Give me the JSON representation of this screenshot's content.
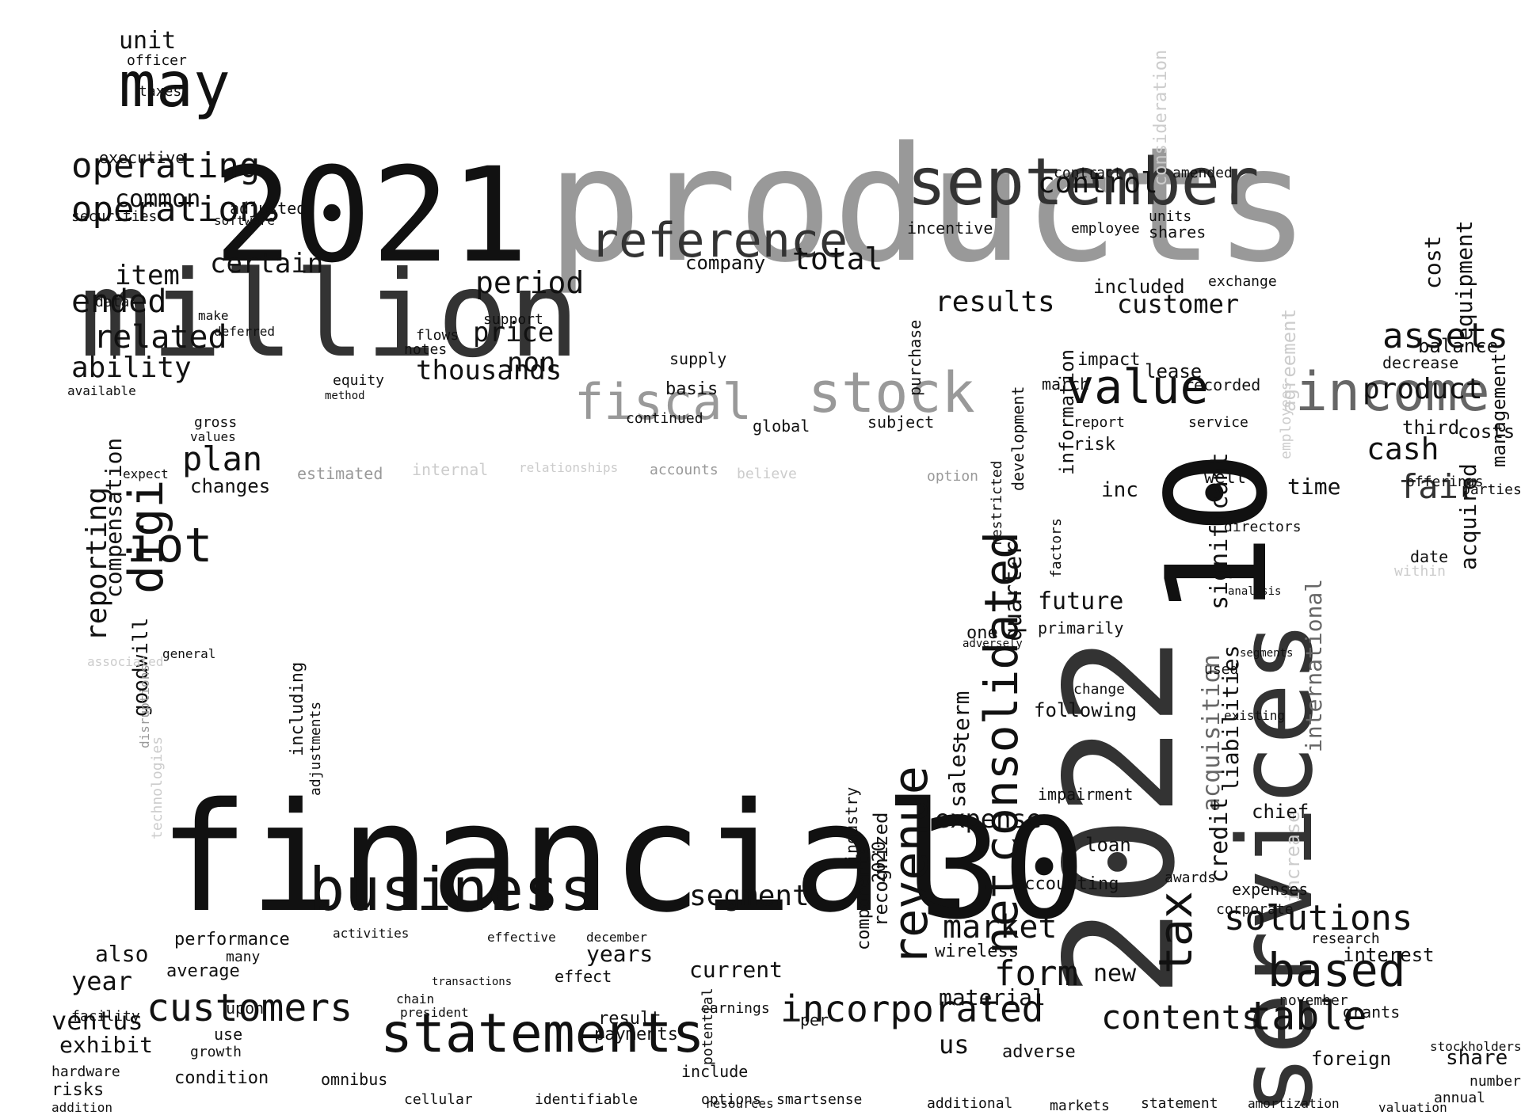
{
  "palette": {
    "background": "#ffffff",
    "black": "#111111",
    "dark": "#333333",
    "mid": "#666666",
    "gray": "#999999",
    "light": "#cccccc"
  },
  "words": [
    {
      "text": "products",
      "color": "gray"
    },
    {
      "text": "financial",
      "color": "black"
    },
    {
      "text": "million",
      "color": "dark"
    },
    {
      "text": "2021",
      "color": "black"
    },
    {
      "text": "2022",
      "color": "dark"
    },
    {
      "text": "30",
      "color": "black"
    },
    {
      "text": "10",
      "color": "black"
    },
    {
      "text": "services",
      "color": "dark"
    },
    {
      "text": "business",
      "color": "black"
    },
    {
      "text": "statements",
      "color": "black"
    },
    {
      "text": "september",
      "color": "dark"
    },
    {
      "text": "may",
      "color": "black"
    },
    {
      "text": "income",
      "color": "mid"
    },
    {
      "text": "reference",
      "color": "dark"
    },
    {
      "text": "stock",
      "color": "gray"
    },
    {
      "text": "fiscal",
      "color": "gray"
    },
    {
      "text": "value",
      "color": "black"
    },
    {
      "text": "iot",
      "color": "black"
    },
    {
      "text": "digi",
      "color": "black"
    },
    {
      "text": "revenue",
      "color": "black"
    },
    {
      "text": "consolidated",
      "color": "black"
    },
    {
      "text": "net",
      "color": "black"
    },
    {
      "text": "tax",
      "color": "black"
    },
    {
      "text": "customers",
      "color": "black"
    },
    {
      "text": "incorporated",
      "color": "black"
    },
    {
      "text": "based",
      "color": "black"
    },
    {
      "text": "operating",
      "color": "black"
    },
    {
      "text": "operations",
      "color": "black"
    },
    {
      "text": "assets",
      "color": "black"
    },
    {
      "text": "table",
      "color": "black"
    },
    {
      "text": "solutions",
      "color": "black"
    },
    {
      "text": "contents",
      "color": "black"
    },
    {
      "text": "form",
      "color": "black"
    },
    {
      "text": "market",
      "color": "black"
    },
    {
      "text": "cash",
      "color": "black"
    },
    {
      "text": "fair",
      "color": "dark"
    },
    {
      "text": "product",
      "color": "black"
    },
    {
      "text": "segment",
      "color": "black"
    },
    {
      "text": "control",
      "color": "black"
    },
    {
      "text": "results",
      "color": "black"
    },
    {
      "text": "customer",
      "color": "black"
    },
    {
      "text": "total",
      "color": "black"
    },
    {
      "text": "period",
      "color": "black"
    },
    {
      "text": "price",
      "color": "black"
    },
    {
      "text": "non",
      "color": "black"
    },
    {
      "text": "thousands",
      "color": "black"
    },
    {
      "text": "ended",
      "color": "black"
    },
    {
      "text": "related",
      "color": "black"
    },
    {
      "text": "ability",
      "color": "black"
    },
    {
      "text": "item",
      "color": "black"
    },
    {
      "text": "certain",
      "color": "black"
    },
    {
      "text": "common",
      "color": "black"
    },
    {
      "text": "plan",
      "color": "black"
    },
    {
      "text": "changes",
      "color": "black"
    },
    {
      "text": "reporting",
      "color": "black"
    },
    {
      "text": "compensation",
      "color": "black"
    },
    {
      "text": "goodwill",
      "color": "black"
    },
    {
      "text": "unit",
      "color": "black"
    },
    {
      "text": "officer",
      "color": "black"
    },
    {
      "text": "taxes",
      "color": "black"
    },
    {
      "text": "executive",
      "color": "black"
    },
    {
      "text": "securities",
      "color": "black"
    },
    {
      "text": "adjusted",
      "color": "black"
    },
    {
      "text": "software",
      "color": "black"
    },
    {
      "text": "future",
      "color": "black"
    },
    {
      "text": "time",
      "color": "black"
    },
    {
      "text": "acquisition",
      "color": "mid"
    },
    {
      "text": "significant",
      "color": "black"
    },
    {
      "text": "liabilities",
      "color": "black"
    },
    {
      "text": "credit",
      "color": "black"
    },
    {
      "text": "international",
      "color": "mid"
    },
    {
      "text": "increase",
      "color": "light"
    },
    {
      "text": "agreement",
      "color": "light"
    },
    {
      "text": "employees",
      "color": "light"
    },
    {
      "text": "information",
      "color": "black"
    },
    {
      "text": "quarter",
      "color": "black"
    },
    {
      "text": "term",
      "color": "black"
    },
    {
      "text": "sales",
      "color": "black"
    },
    {
      "text": "development",
      "color": "black"
    },
    {
      "text": "expense",
      "color": "black"
    },
    {
      "text": "material",
      "color": "black"
    },
    {
      "text": "us",
      "color": "black"
    },
    {
      "text": "new",
      "color": "black"
    },
    {
      "text": "accounting",
      "color": "black"
    },
    {
      "text": "loan",
      "color": "black"
    },
    {
      "text": "impairment",
      "color": "black"
    },
    {
      "text": "following",
      "color": "black"
    },
    {
      "text": "year",
      "color": "black"
    },
    {
      "text": "ventus",
      "color": "black"
    },
    {
      "text": "exhibit",
      "color": "black"
    },
    {
      "text": "also",
      "color": "black"
    },
    {
      "text": "performance",
      "color": "black"
    },
    {
      "text": "current",
      "color": "black"
    },
    {
      "text": "years",
      "color": "black"
    },
    {
      "text": "result",
      "color": "black"
    },
    {
      "text": "payments",
      "color": "black"
    },
    {
      "text": "condition",
      "color": "black"
    },
    {
      "text": "omnibus",
      "color": "black"
    },
    {
      "text": "cellular",
      "color": "black"
    },
    {
      "text": "identifiable",
      "color": "black"
    },
    {
      "text": "smartsense",
      "color": "black"
    },
    {
      "text": "additional",
      "color": "black"
    },
    {
      "text": "markets",
      "color": "black"
    },
    {
      "text": "statement",
      "color": "black"
    },
    {
      "text": "amortization",
      "color": "black"
    },
    {
      "text": "valuation",
      "color": "black"
    },
    {
      "text": "annual",
      "color": "black"
    },
    {
      "text": "share",
      "color": "black"
    },
    {
      "text": "number",
      "color": "black"
    },
    {
      "text": "stockholders",
      "color": "black"
    },
    {
      "text": "foreign",
      "color": "black"
    },
    {
      "text": "interest",
      "color": "black"
    },
    {
      "text": "research",
      "color": "black"
    },
    {
      "text": "november",
      "color": "black"
    },
    {
      "text": "grants",
      "color": "black"
    },
    {
      "text": "expenses",
      "color": "black"
    },
    {
      "text": "chief",
      "color": "black"
    },
    {
      "text": "corporate",
      "color": "black"
    },
    {
      "text": "awards",
      "color": "black"
    },
    {
      "text": "adverse",
      "color": "black"
    },
    {
      "text": "wireless",
      "color": "black"
    },
    {
      "text": "recognized",
      "color": "black"
    },
    {
      "text": "components",
      "color": "black"
    },
    {
      "text": "industry",
      "color": "black"
    },
    {
      "text": "2020",
      "color": "black"
    },
    {
      "text": "equipment",
      "color": "black"
    },
    {
      "text": "acquired",
      "color": "black"
    },
    {
      "text": "management",
      "color": "black"
    },
    {
      "text": "cost",
      "color": "black"
    },
    {
      "text": "balance",
      "color": "black"
    },
    {
      "text": "decrease",
      "color": "black"
    },
    {
      "text": "third",
      "color": "black"
    },
    {
      "text": "costs",
      "color": "black"
    },
    {
      "text": "parties",
      "color": "black"
    },
    {
      "text": "offerings",
      "color": "black"
    },
    {
      "text": "date",
      "color": "black"
    },
    {
      "text": "within",
      "color": "light"
    },
    {
      "text": "consideration",
      "color": "light"
    },
    {
      "text": "contract",
      "color": "black"
    },
    {
      "text": "amended",
      "color": "black"
    },
    {
      "text": "employee",
      "color": "black"
    },
    {
      "text": "units",
      "color": "black"
    },
    {
      "text": "shares",
      "color": "black"
    },
    {
      "text": "included",
      "color": "black"
    },
    {
      "text": "exchange",
      "color": "black"
    },
    {
      "text": "impact",
      "color": "black"
    },
    {
      "text": "march",
      "color": "black"
    },
    {
      "text": "lease",
      "color": "black"
    },
    {
      "text": "recorded",
      "color": "black"
    },
    {
      "text": "report",
      "color": "black"
    },
    {
      "text": "risk",
      "color": "black"
    },
    {
      "text": "inc",
      "color": "black"
    },
    {
      "text": "well",
      "color": "black"
    },
    {
      "text": "directors",
      "color": "black"
    },
    {
      "text": "service",
      "color": "black"
    },
    {
      "text": "company",
      "color": "black"
    },
    {
      "text": "incentive",
      "color": "black"
    },
    {
      "text": "purchase",
      "color": "black"
    },
    {
      "text": "subject",
      "color": "black"
    },
    {
      "text": "continued",
      "color": "black"
    },
    {
      "text": "basis",
      "color": "black"
    },
    {
      "text": "supply",
      "color": "black"
    },
    {
      "text": "support",
      "color": "black"
    },
    {
      "text": "global",
      "color": "black"
    },
    {
      "text": "internal",
      "color": "light"
    },
    {
      "text": "estimated",
      "color": "gray"
    },
    {
      "text": "accounts",
      "color": "gray"
    },
    {
      "text": "believe",
      "color": "light"
    },
    {
      "text": "option",
      "color": "gray"
    },
    {
      "text": "relationships",
      "color": "light"
    },
    {
      "text": "associated",
      "color": "light"
    },
    {
      "text": "technologies",
      "color": "light"
    },
    {
      "text": "disruptions",
      "color": "gray"
    },
    {
      "text": "including",
      "color": "black"
    },
    {
      "text": "adjustments",
      "color": "black"
    },
    {
      "text": "upon",
      "color": "black"
    },
    {
      "text": "use",
      "color": "black"
    },
    {
      "text": "growth",
      "color": "black"
    },
    {
      "text": "average",
      "color": "black"
    },
    {
      "text": "many",
      "color": "black"
    },
    {
      "text": "hardware",
      "color": "black"
    },
    {
      "text": "risks",
      "color": "black"
    },
    {
      "text": "addition",
      "color": "black"
    },
    {
      "text": "facility",
      "color": "black"
    },
    {
      "text": "per",
      "color": "black"
    },
    {
      "text": "options",
      "color": "black"
    },
    {
      "text": "include",
      "color": "black"
    },
    {
      "text": "resources",
      "color": "black"
    },
    {
      "text": "earnings",
      "color": "black"
    },
    {
      "text": "potential",
      "color": "black"
    },
    {
      "text": "effect",
      "color": "black"
    },
    {
      "text": "december",
      "color": "black"
    },
    {
      "text": "activities",
      "color": "black"
    },
    {
      "text": "effective",
      "color": "black"
    },
    {
      "text": "president",
      "color": "black"
    },
    {
      "text": "chain",
      "color": "black"
    },
    {
      "text": "transactions",
      "color": "black"
    },
    {
      "text": "notes",
      "color": "black"
    },
    {
      "text": "flows",
      "color": "black"
    },
    {
      "text": "equity",
      "color": "black"
    },
    {
      "text": "method",
      "color": "black"
    },
    {
      "text": "gross",
      "color": "black"
    },
    {
      "text": "values",
      "color": "black"
    },
    {
      "text": "make",
      "color": "black"
    },
    {
      "text": "deferred",
      "color": "black"
    },
    {
      "text": "data",
      "color": "black"
    },
    {
      "text": "available",
      "color": "black"
    },
    {
      "text": "expect",
      "color": "black"
    },
    {
      "text": "general",
      "color": "black"
    },
    {
      "text": "restricted",
      "color": "black"
    },
    {
      "text": "primarily",
      "color": "black"
    },
    {
      "text": "one",
      "color": "black"
    },
    {
      "text": "adversely",
      "color": "black"
    },
    {
      "text": "change",
      "color": "black"
    },
    {
      "text": "used",
      "color": "black"
    },
    {
      "text": "existing",
      "color": "black"
    },
    {
      "text": "segments",
      "color": "black"
    },
    {
      "text": "analysis",
      "color": "black"
    },
    {
      "text": "factors",
      "color": "black"
    },
    {
      "text": "ventus",
      "color": "black"
    }
  ]
}
